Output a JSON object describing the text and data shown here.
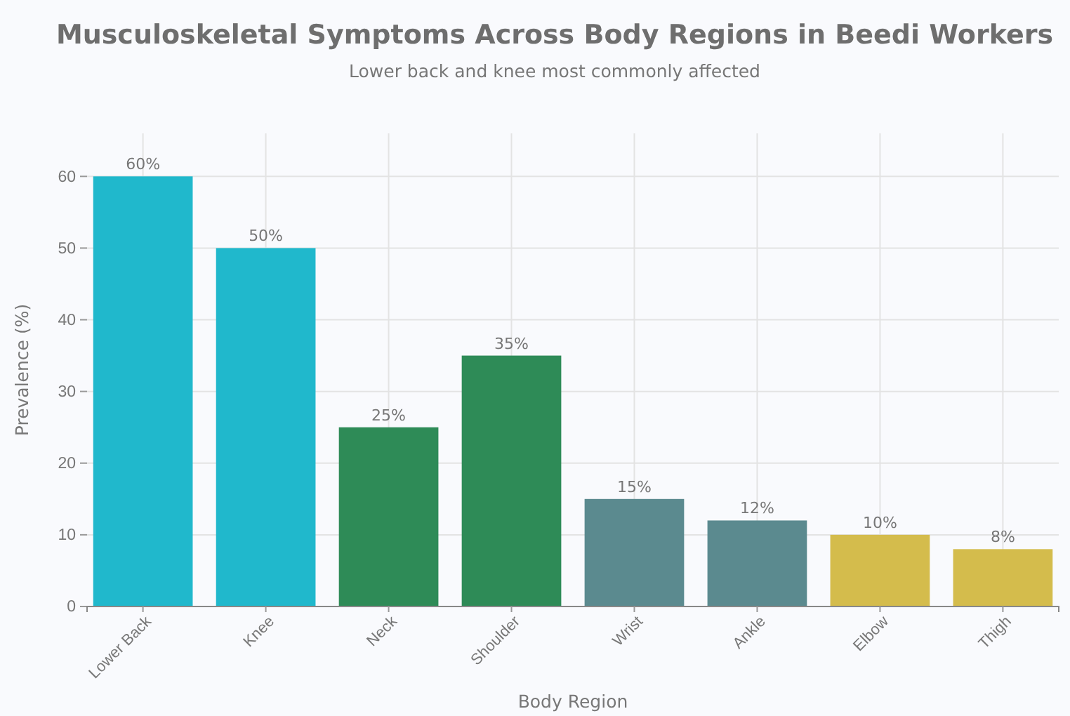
{
  "chart_data": {
    "type": "bar",
    "title": "Musculoskeletal Symptoms Across Body Regions in Beedi Workers",
    "subtitle": "Lower back and knee most commonly affected",
    "xlabel": "Body Region",
    "ylabel": "Prevalence (%)",
    "categories": [
      "Lower Back",
      "Knee",
      "Neck",
      "Shoulder",
      "Wrist",
      "Ankle",
      "Elbow",
      "Thigh"
    ],
    "values": [
      60,
      50,
      25,
      35,
      15,
      12,
      10,
      8
    ],
    "colors": [
      "#20b8cc",
      "#20b8cc",
      "#2e8b57",
      "#2e8b57",
      "#5b8a8f",
      "#5b8a8f",
      "#d4bc4c",
      "#d4bc4c"
    ],
    "value_labels": [
      "60%",
      "50%",
      "25%",
      "35%",
      "15%",
      "12%",
      "10%",
      "8%"
    ],
    "ylim": [
      0,
      66
    ],
    "yticks": [
      0,
      10,
      20,
      30,
      40,
      50,
      60
    ],
    "grid": true
  }
}
